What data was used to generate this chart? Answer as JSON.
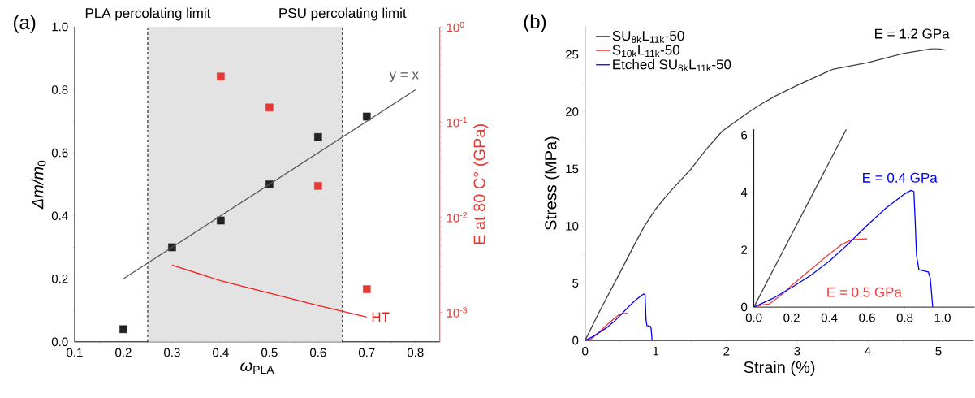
{
  "chart_data": [
    {
      "type": "scatter",
      "annotations": [
        "(a)"
      ],
      "xlabel": "*ω*$_{PLA}$",
      "ylabel": "*Δm/m*$_{0}$",
      "y2label": "E at 80 C° (GPa)",
      "xlim": [
        0.1,
        0.85
      ],
      "xticks": [
        0.1,
        0.2,
        0.3,
        0.4,
        0.5,
        0.6,
        0.7,
        0.8
      ],
      "ylim": [
        0,
        1
      ],
      "yticks": [
        {
          "value": 0,
          "label": "0.0"
        },
        0.2,
        0.4,
        0.6,
        0.8,
        {
          "value": 1,
          "label": "1.0"
        }
      ],
      "y2lim": [
        0.00049,
        1
      ],
      "y2ticks": [
        {
          "value": 0.001,
          "label": "10$^{-3}$"
        },
        {
          "value": 0.01,
          "label": "10$^{-2}$"
        },
        {
          "value": 0.1,
          "label": "10$^{-1}$"
        },
        {
          "value": 1,
          "label": "10$^{0}$"
        }
      ],
      "log": "y2",
      "bands": [
        {
          "axis": "x",
          "from": 0.25,
          "to": 0.65,
          "color": "#e3e3e3"
        }
      ],
      "ref_lines": [
        {
          "axis": "x",
          "value": 0.25,
          "label": "PLA percolating limit",
          "color": "#000000",
          "line_style": "dashed"
        },
        {
          "axis": "x",
          "value": 0.65,
          "label": "PSU percolating limit",
          "color": "#000000",
          "line_style": "dashed"
        }
      ],
      "series": [
        {
          "marker": "square",
          "color": "#222222",
          "x": [
            0.2,
            0.3,
            0.4,
            0.5,
            0.6,
            0.7
          ],
          "values": [
            0.04,
            0.3,
            0.385,
            0.5,
            0.65,
            0.715
          ]
        },
        {
          "type": "line",
          "name": "y = x",
          "color": "#555555",
          "x": [
            0.2,
            0.8
          ],
          "values": [
            0.2,
            0.8
          ]
        },
        {
          "axis": "y2",
          "marker": "square",
          "color": "#e53935",
          "x": [
            0.4,
            0.5,
            0.6,
            0.7
          ],
          "values": [
            0.3,
            0.142,
            0.0213,
            0.00175
          ]
        },
        {
          "type": "line",
          "axis": "y2",
          "name": "HT",
          "color": "#ff1a1a",
          "x": [
            0.3,
            0.4,
            0.5,
            0.6,
            0.7
          ],
          "values": [
            0.00313,
            0.00215,
            0.00159,
            0.00118,
            0.00089
          ]
        }
      ]
    },
    {
      "type": "line",
      "annotations": [
        "(b)",
        "E = 1.2 GPa"
      ],
      "xlabel": "Strain (%)",
      "ylabel": "Stress (MPa)",
      "xlim": [
        0,
        5.5
      ],
      "xticks": [
        0,
        1,
        2,
        3,
        4,
        5
      ],
      "ylim": [
        0,
        27.5
      ],
      "yticks": [
        0,
        5,
        10,
        15,
        20,
        25
      ],
      "legend": "top left",
      "series": [
        {
          "name": "SU$_{8k}$L$_{11k}$-50",
          "color": "#404040",
          "x": [
            0,
            0.2,
            0.5,
            0.7,
            0.84,
            1,
            1.2,
            1.5,
            1.7,
            1.94,
            2.3,
            2.5,
            2.7,
            3,
            3.5,
            4,
            4.5,
            4.9,
            5,
            5.1
          ],
          "values": [
            0,
            2.5,
            6,
            8.4,
            10,
            11.5,
            13,
            15,
            16.6,
            18.3,
            19.9,
            20.7,
            21.4,
            22.3,
            23.7,
            24.3,
            25.1,
            25.5,
            25.5,
            25.4
          ]
        },
        {
          "name": "S$_{10k}$L$_{11k}$-50",
          "color": "#e84040",
          "x": [
            0,
            0.05,
            0.08,
            0.15,
            0.2,
            0.3,
            0.4,
            0.47,
            0.52,
            0.6
          ],
          "values": [
            0,
            0.08,
            0.1,
            0.45,
            0.75,
            1.3,
            1.85,
            2.2,
            2.35,
            2.38
          ]
        },
        {
          "name": "Etched SU$_{8k}$L$_{11k}$-50",
          "color": "#0000ff",
          "x": [
            0,
            0.1,
            0.2,
            0.3,
            0.4,
            0.5,
            0.6,
            0.7,
            0.8,
            0.833,
            0.848,
            0.855,
            0.862,
            0.875,
            0.925,
            0.935,
            0.948
          ],
          "values": [
            0,
            0.3,
            0.68,
            1.1,
            1.6,
            2.2,
            2.85,
            3.45,
            3.95,
            4.07,
            4.03,
            3,
            1.8,
            1.3,
            1.22,
            1,
            0
          ]
        }
      ]
    },
    {
      "type": "line",
      "xlim": [
        0,
        1.17
      ],
      "xticks": [
        {
          "value": 0,
          "label": "0.0"
        },
        0.2,
        0.4,
        0.6,
        0.8,
        {
          "value": 1,
          "label": "1.0"
        }
      ],
      "ylim": [
        0,
        6.2
      ],
      "yticks": [
        0,
        2,
        4,
        6
      ],
      "series": [
        {
          "color": "#404040",
          "x": [
            0,
            0.49
          ],
          "values": [
            0,
            6.2
          ]
        },
        {
          "name": "E = 0.5 GPa",
          "color": "#e84040",
          "x": [
            0,
            0.05,
            0.08,
            0.15,
            0.2,
            0.3,
            0.4,
            0.47,
            0.52,
            0.6
          ],
          "values": [
            0,
            0.08,
            0.1,
            0.45,
            0.75,
            1.3,
            1.85,
            2.2,
            2.35,
            2.38
          ]
        },
        {
          "name": "E = 0.4 GPa",
          "color": "#0000ff",
          "x": [
            0,
            0.1,
            0.2,
            0.3,
            0.4,
            0.5,
            0.6,
            0.7,
            0.8,
            0.833,
            0.848,
            0.855,
            0.862,
            0.875,
            0.925,
            0.935,
            0.948
          ],
          "values": [
            0,
            0.3,
            0.68,
            1.1,
            1.6,
            2.2,
            2.85,
            3.45,
            3.95,
            4.07,
            4.03,
            3,
            1.8,
            1.3,
            1.22,
            1,
            0
          ]
        }
      ]
    }
  ]
}
